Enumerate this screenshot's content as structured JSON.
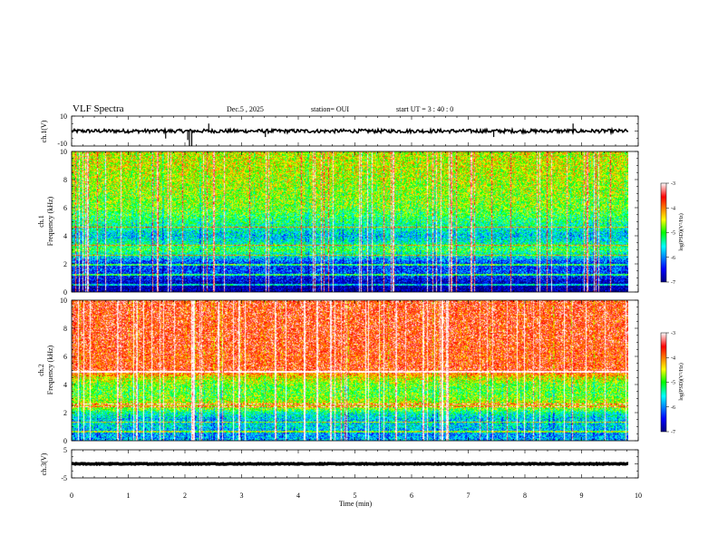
{
  "header": {
    "title": "VLF Spectra",
    "date": "Dec.5  , 2025",
    "station": "station= OUI",
    "start_ut": "start  UT =   3  : 40 : 0"
  },
  "chart_data": [
    {
      "id": "ch1-waveform",
      "type": "line",
      "ylabel": "ch.1(V)",
      "ylim": [
        -10,
        10
      ],
      "yticks": [
        "10",
        "-10"
      ],
      "xlim": [
        0,
        10
      ],
      "baseline": 0,
      "noise": 1.2,
      "color": "#000000",
      "spikes": [
        {
          "x": 1.66,
          "y": -5
        },
        {
          "x": 2.05,
          "y": -6
        },
        {
          "x": 2.08,
          "y": -10
        },
        {
          "x": 2.12,
          "y": -10
        },
        {
          "x": 2.42,
          "y": 5
        },
        {
          "x": 3.42,
          "y": -4
        },
        {
          "x": 7.45,
          "y": -4
        },
        {
          "x": 8.85,
          "y": 5
        }
      ]
    },
    {
      "id": "ch1-spectrogram",
      "type": "heatmap",
      "ylabel_line1": "ch.1",
      "ylabel_line2": "Frequency (kHz)",
      "ylim": [
        0,
        10
      ],
      "yticks": [
        "0",
        "2",
        "4",
        "6",
        "8",
        "10"
      ],
      "xlim": [
        0,
        10
      ],
      "colorbar": {
        "label": "log(PSD)(V²/Hz)",
        "range": [
          -7,
          -3
        ],
        "ticks": [
          "-3",
          "-4",
          "-5",
          "-6",
          "-7"
        ]
      },
      "level_profile": [
        {
          "f": 0.0,
          "v": -6.9
        },
        {
          "f": 0.5,
          "v": -6.8
        },
        {
          "f": 1.0,
          "v": -6.4
        },
        {
          "f": 1.5,
          "v": -6.2
        },
        {
          "f": 2.0,
          "v": -6.3
        },
        {
          "f": 2.5,
          "v": -5.6
        },
        {
          "f": 3.0,
          "v": -5.0
        },
        {
          "f": 3.5,
          "v": -5.4
        },
        {
          "f": 4.0,
          "v": -5.7
        },
        {
          "f": 4.5,
          "v": -5.4
        },
        {
          "f": 5.0,
          "v": -5.2
        },
        {
          "f": 6.0,
          "v": -4.8
        },
        {
          "f": 7.0,
          "v": -4.7
        },
        {
          "f": 8.0,
          "v": -4.6
        },
        {
          "f": 9.0,
          "v": -4.5
        },
        {
          "f": 10.0,
          "v": -4.5
        }
      ],
      "lines_khz": [
        0.5,
        1.2,
        1.9,
        2.6,
        3.3,
        4.6
      ],
      "burst_level": -3.4
    },
    {
      "id": "ch2-spectrogram",
      "type": "heatmap",
      "ylabel_line1": "ch.2",
      "ylabel_line2": "Frequency (kHz)",
      "ylim": [
        0,
        10
      ],
      "yticks": [
        "0",
        "2",
        "4",
        "6",
        "8",
        "10"
      ],
      "xlim": [
        0,
        10
      ],
      "colorbar": {
        "label": "log(PSD)(V²/Hz)",
        "range": [
          -7,
          -3
        ],
        "ticks": [
          "-3",
          "-4",
          "-5",
          "-6",
          "-7"
        ]
      },
      "level_profile": [
        {
          "f": 0.0,
          "v": -5.8
        },
        {
          "f": 0.5,
          "v": -5.9
        },
        {
          "f": 1.0,
          "v": -5.6
        },
        {
          "f": 1.5,
          "v": -5.7
        },
        {
          "f": 2.0,
          "v": -5.3
        },
        {
          "f": 2.5,
          "v": -4.3
        },
        {
          "f": 3.0,
          "v": -4.8
        },
        {
          "f": 3.5,
          "v": -4.9
        },
        {
          "f": 4.0,
          "v": -4.8
        },
        {
          "f": 4.5,
          "v": -4.4
        },
        {
          "f": 5.0,
          "v": -3.6
        },
        {
          "f": 6.0,
          "v": -3.7
        },
        {
          "f": 7.0,
          "v": -3.6
        },
        {
          "f": 8.0,
          "v": -3.6
        },
        {
          "f": 9.0,
          "v": -3.6
        },
        {
          "f": 10.0,
          "v": -3.6
        }
      ],
      "lines_khz": [
        0.6,
        1.3,
        2.4,
        2.6,
        4.9
      ],
      "burst_level": -3.2
    },
    {
      "id": "ch3-waveform",
      "type": "line",
      "ylabel": "ch.3(V)",
      "ylim": [
        -5,
        5
      ],
      "yticks": [
        "5",
        "-5"
      ],
      "xlim": [
        0,
        10
      ],
      "baseline": 0,
      "noise": 0.15,
      "color": "#000000",
      "spikes": []
    }
  ],
  "time_axis": {
    "label": "Time (min)",
    "ticks": [
      "0",
      "1",
      "2",
      "3",
      "4",
      "5",
      "6",
      "7",
      "8",
      "9",
      "10"
    ],
    "range": [
      0,
      10
    ],
    "data_end": 9.83
  }
}
